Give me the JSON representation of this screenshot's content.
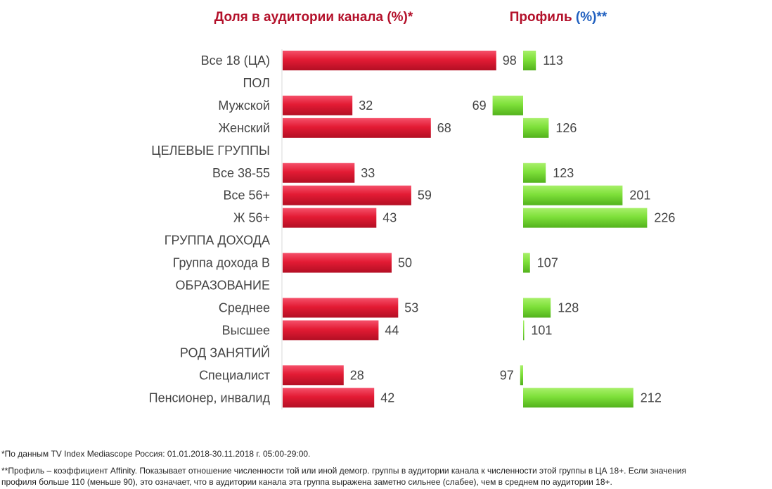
{
  "colors": {
    "share_bar": "#e31b34",
    "share_bar_dark": "#b30f24",
    "profile_bar": "#7ee03a",
    "profile_bar_dark": "#52b21c",
    "share_title": "#b3102a",
    "profile_title": "#b3102a",
    "profile_title_accent": "#1f5fbf",
    "axis": "#d9d9d9",
    "label": "#444444"
  },
  "titles": {
    "share": "Доля в аудитории канала (%)*",
    "profile_prefix": "Профиль ",
    "profile_accent": "(%)**"
  },
  "chart_data": {
    "type": "bar",
    "orientation": "horizontal",
    "categories": [
      "Все 18 (ЦА)",
      "ПОЛ",
      "Мужской",
      "Женский",
      "ЦЕЛЕВЫЕ ГРУППЫ",
      "Все 38-55",
      "Все 56+",
      "Ж 56+",
      "ГРУППА ДОХОДА",
      "Группа дохода В",
      "ОБРАЗОВАНИЕ",
      "Среднее",
      "Высшее",
      "РОД ЗАНЯТИЙ",
      "Специалист",
      "Пенсионер,  инвалид"
    ],
    "series": [
      {
        "name": "Доля в аудитории канала (%)*",
        "values": [
          98,
          null,
          32,
          68,
          null,
          33,
          59,
          43,
          null,
          50,
          null,
          53,
          44,
          null,
          28,
          42
        ]
      },
      {
        "name": "Профиль (%)**",
        "values": [
          113,
          null,
          69,
          126,
          null,
          123,
          201,
          226,
          null,
          107,
          null,
          128,
          101,
          null,
          97,
          212
        ],
        "baseline": 100
      }
    ],
    "grid": false,
    "legend": "none"
  },
  "footnotes": {
    "line1": "*По данным TV Index Mediascope Россия: 01.01.2018-30.11.2018  г. 05:00-29:00.",
    "line2": "**Профиль – коэффициент  Affinity. Показывает отношение численности той или иной демогр. группы в аудитории канала к численности этой группы  в ЦА 18+.  Если значения",
    "line3": "профиля больше 110 (меньше 90), это означает, что в аудитории канала эта группа  выражена заметно сильнее (слабее), чем в среднем  по аудитории  18+."
  }
}
